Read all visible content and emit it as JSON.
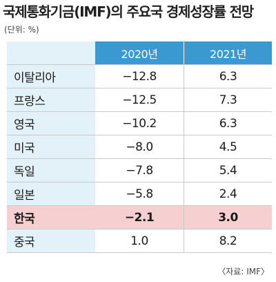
{
  "title": "국제통화기금(IMF)의 주요국 경제성장률 전망",
  "unit": "(단위: %)",
  "columns": {
    "c2020": "2020년",
    "c2021": "2021년"
  },
  "rows": [
    {
      "country": "이탈리아",
      "v2020": "−12.8",
      "v2021": "6.3"
    },
    {
      "country": "프랑스",
      "v2020": "−12.5",
      "v2021": "7.3"
    },
    {
      "country": "영국",
      "v2020": "−10.2",
      "v2021": "6.3"
    },
    {
      "country": "미국",
      "v2020": "−8.0",
      "v2021": "4.5"
    },
    {
      "country": "독일",
      "v2020": "−7.8",
      "v2021": "5.4"
    },
    {
      "country": "일본",
      "v2020": "−5.8",
      "v2021": "2.4"
    },
    {
      "country": "한국",
      "v2020": "−2.1",
      "v2021": "3.0"
    },
    {
      "country": "중국",
      "v2020": "1.0",
      "v2021": "8.2"
    }
  ],
  "highlight_color": "#f6cfd1",
  "header_color": "#3a99d0",
  "name_column_color": "#e3f2f8",
  "source": "〈자료: IMF〉"
}
